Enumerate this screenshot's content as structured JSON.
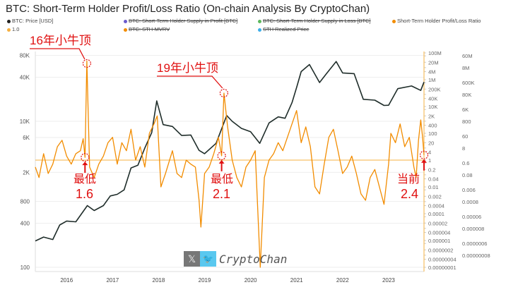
{
  "title": "BTC: Short-Term Holder Profit/Loss Ratio (On-chain Analysis By CryptoChan)",
  "legend": [
    {
      "label": "BTC: Price [USD]",
      "color": "#222222",
      "struck": false
    },
    {
      "label": "BTC: Short-Term Holder Supply in Profit [BTC]",
      "color": "#6a5acd",
      "struck": true
    },
    {
      "label": "BTC: Short-Term Holder Supply in Loss [BTC]",
      "color": "#5cb85c",
      "struck": true
    },
    {
      "label": "Short-Term Holder Profit/Loss Ratio",
      "color": "#f28c00",
      "struck": false
    },
    {
      "label": "1.0",
      "color": "#f5b041",
      "struck": false
    },
    {
      "label": "BTC: STH-MVRV",
      "color": "#f28c00",
      "struck": true
    },
    {
      "label": "STH Realized Price",
      "color": "#3daee9",
      "struck": true
    }
  ],
  "watermark": {
    "x_icon": "x-logo-icon",
    "twitter_icon": "twitter-bird-icon",
    "name": "CryptoChan"
  },
  "annotations": [
    {
      "text": "16年小牛顶",
      "color": "#e01010"
    },
    {
      "text": "19年小牛顶",
      "color": "#e01010"
    },
    {
      "text": "最低",
      "value": "1.6"
    },
    {
      "text": "最低",
      "value": "2.1"
    },
    {
      "text": "当前",
      "value": "2.4"
    }
  ],
  "chart_data": {
    "type": "line",
    "title": "BTC: Short-Term Holder Profit/Loss Ratio (On-chain Analysis By CryptoChan)",
    "x_ticks": [
      "2016",
      "2017",
      "2018",
      "2019",
      "2020",
      "2021",
      "2022",
      "2023"
    ],
    "xlim": [
      2015.32,
      2023.77
    ],
    "left_axis": {
      "scale": "log",
      "ticks": [
        "80K",
        "40K",
        "10K",
        "6K",
        "2K",
        "800",
        "400",
        "100"
      ],
      "tick_values": [
        80000,
        40000,
        10000,
        6000,
        2000,
        800,
        400,
        100
      ]
    },
    "right_axis": {
      "scale": "log",
      "ticks": [
        "100M",
        "60M",
        "20M",
        "8M",
        "4M",
        "1M",
        "600K",
        "200K",
        "80K",
        "40K",
        "10K",
        "6K",
        "2K",
        "800",
        "400",
        "100",
        "60",
        "20",
        "8",
        "4",
        "1",
        "0.6",
        "0.2",
        "0.08",
        "0.04",
        "0.01",
        "0.006",
        "0.002",
        "0.0008",
        "0.0004",
        "0.0001",
        "0.00006",
        "0.00002",
        "0.000008",
        "0.000004",
        "0.000001",
        "0.0000006",
        "0.0000002",
        "0.00000008",
        "0.00000004",
        "0.00000001"
      ]
    },
    "grid": true,
    "legend_placement": "top",
    "reference_line": {
      "label": "1.0",
      "value": 1.0,
      "color": "#f5b041"
    },
    "series": [
      {
        "name": "BTC: Price [USD]",
        "axis": "left",
        "color": "#1f2d2a",
        "x": [
          2015.32,
          2015.5,
          2015.7,
          2015.85,
          2016.0,
          2016.2,
          2016.45,
          2016.6,
          2016.8,
          2016.95,
          2017.1,
          2017.25,
          2017.4,
          2017.55,
          2017.7,
          2017.85,
          2017.96,
          2018.1,
          2018.3,
          2018.5,
          2018.7,
          2018.88,
          2019.0,
          2019.25,
          2019.48,
          2019.6,
          2019.8,
          2020.0,
          2020.2,
          2020.4,
          2020.6,
          2020.75,
          2020.9,
          2021.0,
          2021.1,
          2021.28,
          2021.5,
          2021.65,
          2021.86,
          2022.0,
          2022.25,
          2022.45,
          2022.7,
          2022.9,
          2023.0,
          2023.2,
          2023.5,
          2023.7,
          2023.77
        ],
        "y": [
          230,
          260,
          240,
          380,
          430,
          420,
          700,
          600,
          700,
          950,
          1000,
          1150,
          2300,
          2500,
          4300,
          7000,
          19000,
          9000,
          8500,
          6400,
          6500,
          4000,
          3600,
          5000,
          12000,
          10000,
          8000,
          7200,
          5000,
          9500,
          11500,
          11000,
          18000,
          29000,
          48000,
          60000,
          34000,
          45000,
          66000,
          46000,
          45000,
          20000,
          19500,
          16500,
          16600,
          28000,
          30500,
          26500,
          34500
        ]
      },
      {
        "name": "Short-Term Holder Profit/Loss Ratio",
        "axis": "right",
        "color": "#f28c00",
        "x": [
          2015.32,
          2015.4,
          2015.5,
          2015.6,
          2015.7,
          2015.8,
          2015.9,
          2016.0,
          2016.1,
          2016.2,
          2016.3,
          2016.36,
          2016.4,
          2016.44,
          2016.5,
          2016.6,
          2016.7,
          2016.8,
          2016.9,
          2017.0,
          2017.1,
          2017.2,
          2017.3,
          2017.4,
          2017.5,
          2017.6,
          2017.7,
          2017.8,
          2017.9,
          2017.97,
          2018.05,
          2018.15,
          2018.3,
          2018.4,
          2018.5,
          2018.6,
          2018.7,
          2018.8,
          2018.88,
          2018.92,
          2019.0,
          2019.1,
          2019.2,
          2019.3,
          2019.37,
          2019.42,
          2019.5,
          2019.6,
          2019.7,
          2019.8,
          2019.9,
          2020.0,
          2020.1,
          2020.21,
          2020.3,
          2020.4,
          2020.5,
          2020.6,
          2020.7,
          2020.8,
          2020.9,
          2021.0,
          2021.1,
          2021.2,
          2021.3,
          2021.4,
          2021.5,
          2021.6,
          2021.7,
          2021.8,
          2021.9,
          2022.0,
          2022.1,
          2022.2,
          2022.3,
          2022.4,
          2022.5,
          2022.6,
          2022.7,
          2022.8,
          2022.9,
          2023.0,
          2023.05,
          2023.15,
          2023.25,
          2023.35,
          2023.45,
          2023.55,
          2023.6,
          2023.65,
          2023.7,
          2023.74,
          2023.77
        ],
        "y": [
          0.3,
          0.05,
          3,
          0.1,
          0.5,
          10,
          30,
          2,
          0.5,
          3,
          5,
          40,
          1.6,
          25000000,
          0.3,
          0.05,
          0.5,
          2,
          20,
          50,
          0.5,
          20,
          5,
          200,
          1,
          10,
          0.3,
          100,
          500,
          2000,
          0.01,
          0.1,
          5,
          0.1,
          0.05,
          1,
          0.5,
          0.3,
          0.001,
          1e-05,
          0.1,
          0.3,
          3,
          50,
          2.1,
          100000,
          300,
          1,
          0.05,
          0.01,
          0.3,
          1,
          5,
          1e-08,
          0.05,
          1,
          3,
          20,
          5,
          50,
          500,
          5000,
          20,
          300,
          10,
          0.01,
          0.003,
          0.5,
          50,
          200,
          5,
          0.1,
          0.3,
          2,
          0.1,
          0.003,
          0.001,
          0.05,
          0.2,
          0.01,
          0.0005,
          0.5,
          100,
          20,
          500,
          10,
          50,
          0.3,
          0.05,
          30,
          1000,
          50,
          2.4
        ]
      }
    ]
  }
}
